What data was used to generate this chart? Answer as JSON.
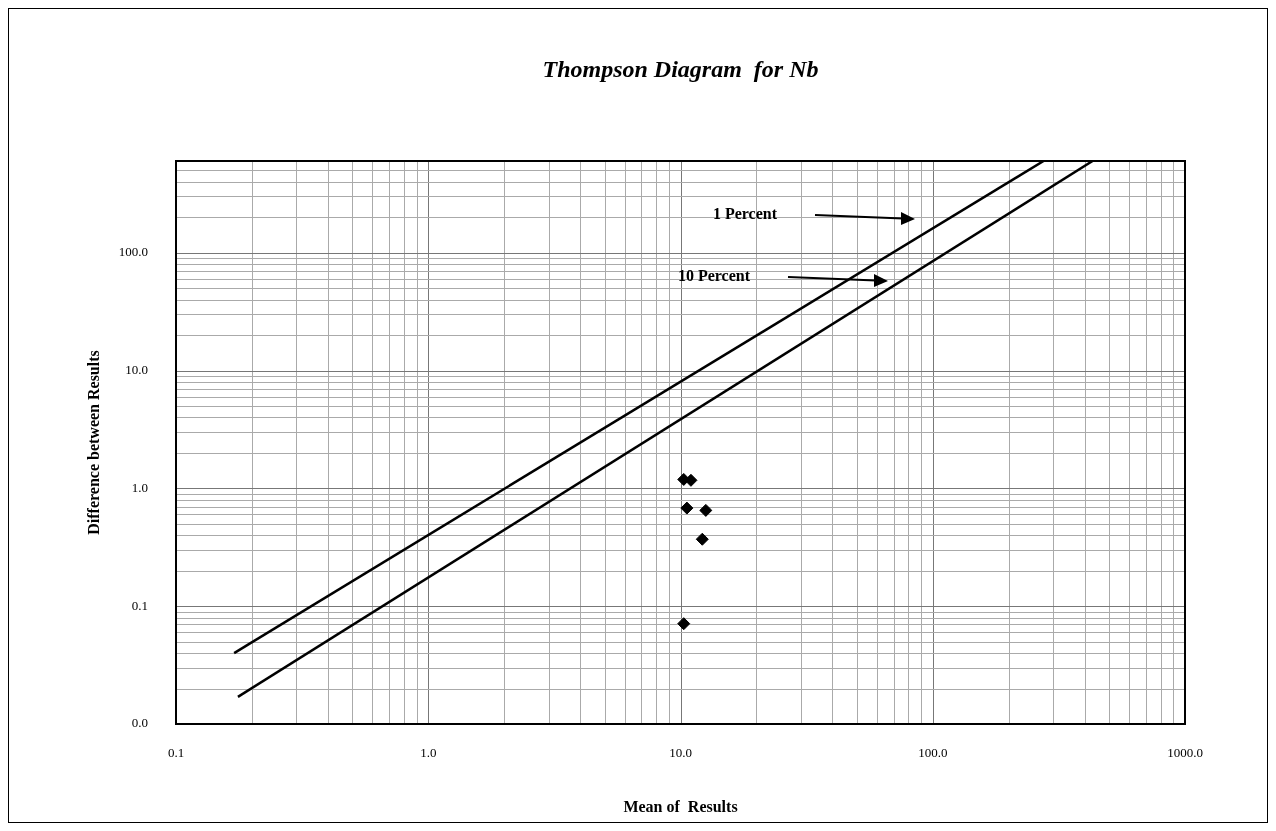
{
  "chart_data": {
    "type": "scatter",
    "title": "Thompson Diagram  for Nb",
    "xlabel": "Mean of  Results",
    "ylabel": "Difference between Results",
    "log": "xy",
    "grid": true,
    "legend": false,
    "marker": "diamond",
    "xlim": [
      0.1,
      1000
    ],
    "xticks": [
      {
        "value": 0.1,
        "label": "0.1"
      },
      {
        "value": 1,
        "label": "1.0"
      },
      {
        "value": 10,
        "label": "10.0"
      },
      {
        "value": 100,
        "label": "100.0"
      },
      {
        "value": 1000,
        "label": "1000.0"
      }
    ],
    "ylim": [
      0.01,
      600
    ],
    "yticks": [
      {
        "value": 0.01,
        "label": "0.0"
      },
      {
        "value": 0.1,
        "label": "0.1"
      },
      {
        "value": 1,
        "label": "1.0"
      },
      {
        "value": 10,
        "label": "10.0"
      },
      {
        "value": 100,
        "label": "100.0"
      }
    ],
    "series": [
      {
        "color": "#000000",
        "x": [
          10.3,
          11.0,
          10.6,
          12.6,
          12.2,
          10.3
        ],
        "values": [
          1.19,
          1.17,
          0.68,
          0.65,
          0.37,
          0.071
        ]
      },
      {
        "type": "line",
        "color": "#000000",
        "marker": "none",
        "x": [
          0.17,
          275
        ],
        "values": [
          0.04,
          600
        ]
      },
      {
        "type": "line",
        "color": "#000000",
        "marker": "none",
        "x": [
          0.176,
          430
        ],
        "values": [
          0.017,
          600
        ]
      }
    ],
    "annotations": [
      "1 Percent",
      "10 Percent"
    ]
  }
}
